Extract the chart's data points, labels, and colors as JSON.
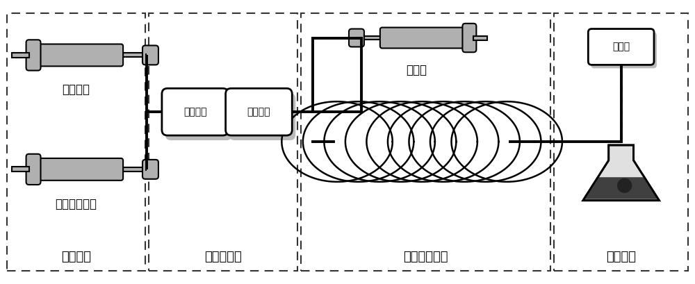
{
  "bg_color": "#ffffff",
  "black": "#000000",
  "gray": "#b0b0b0",
  "dark_gray": "#555555",
  "section_labels": [
    "流速控制",
    "物料混合区",
    "微通道反应器",
    "产物收集"
  ],
  "syringe1_label": "内核溶液",
  "syringe2_label": "包覆材料溶液",
  "disperse_label": "分散液",
  "mixer1_label": "剪切装置",
  "mixer2_label": "微混合器",
  "detector_label": "检测器"
}
